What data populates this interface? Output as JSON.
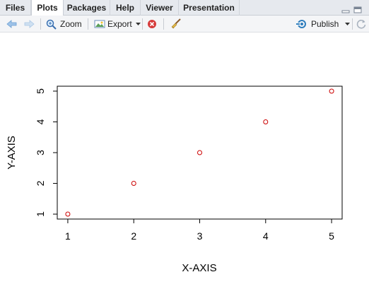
{
  "tabs": [
    "Files",
    "Plots",
    "Packages",
    "Help",
    "Viewer",
    "Presentation"
  ],
  "active_tab": "Plots",
  "toolbar": {
    "zoom_label": "Zoom",
    "export_label": "Export",
    "publish_label": "Publish"
  },
  "chart_data": {
    "type": "scatter",
    "x": [
      1,
      2,
      3,
      4,
      5
    ],
    "y": [
      1,
      2,
      3,
      4,
      5
    ],
    "xlabel": "X-AXIS",
    "ylabel": "Y-AXIS",
    "xlim": [
      0.84,
      5.16
    ],
    "ylim": [
      0.84,
      5.16
    ],
    "x_ticks": [
      "1",
      "2",
      "3",
      "4",
      "5"
    ],
    "y_ticks": [
      "1",
      "2",
      "3",
      "4",
      "5"
    ],
    "point_color": "#cc0000",
    "grid": false
  }
}
